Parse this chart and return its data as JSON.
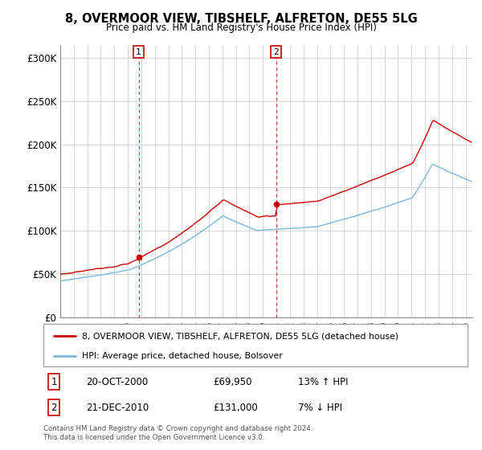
{
  "title": "8, OVERMOOR VIEW, TIBSHELF, ALFRETON, DE55 5LG",
  "subtitle": "Price paid vs. HM Land Registry's House Price Index (HPI)",
  "ylabel_ticks": [
    "£0",
    "£50K",
    "£100K",
    "£150K",
    "£200K",
    "£250K",
    "£300K"
  ],
  "ytick_values": [
    0,
    50000,
    100000,
    150000,
    200000,
    250000,
    300000
  ],
  "ylim": [
    0,
    315000
  ],
  "sale1_date": "20-OCT-2000",
  "sale1_price": 69950,
  "sale1_hpi_text": "13% ↑ HPI",
  "sale2_date": "21-DEC-2010",
  "sale2_price": 131000,
  "sale2_hpi_text": "7% ↓ HPI",
  "sale1_x": 2000.8,
  "sale2_x": 2010.97,
  "legend_line1": "8, OVERMOOR VIEW, TIBSHELF, ALFRETON, DE55 5LG (detached house)",
  "legend_line2": "HPI: Average price, detached house, Bolsover",
  "footer": "Contains HM Land Registry data © Crown copyright and database right 2024.\nThis data is licensed under the Open Government Licence v3.0.",
  "hpi_color": "#7ab8d9",
  "price_color": "#cc0000",
  "vline_color": "#cc0000",
  "background_color": "#ffffff",
  "grid_color": "#d0d0d0",
  "xmin": 1995,
  "xmax": 2025.5
}
